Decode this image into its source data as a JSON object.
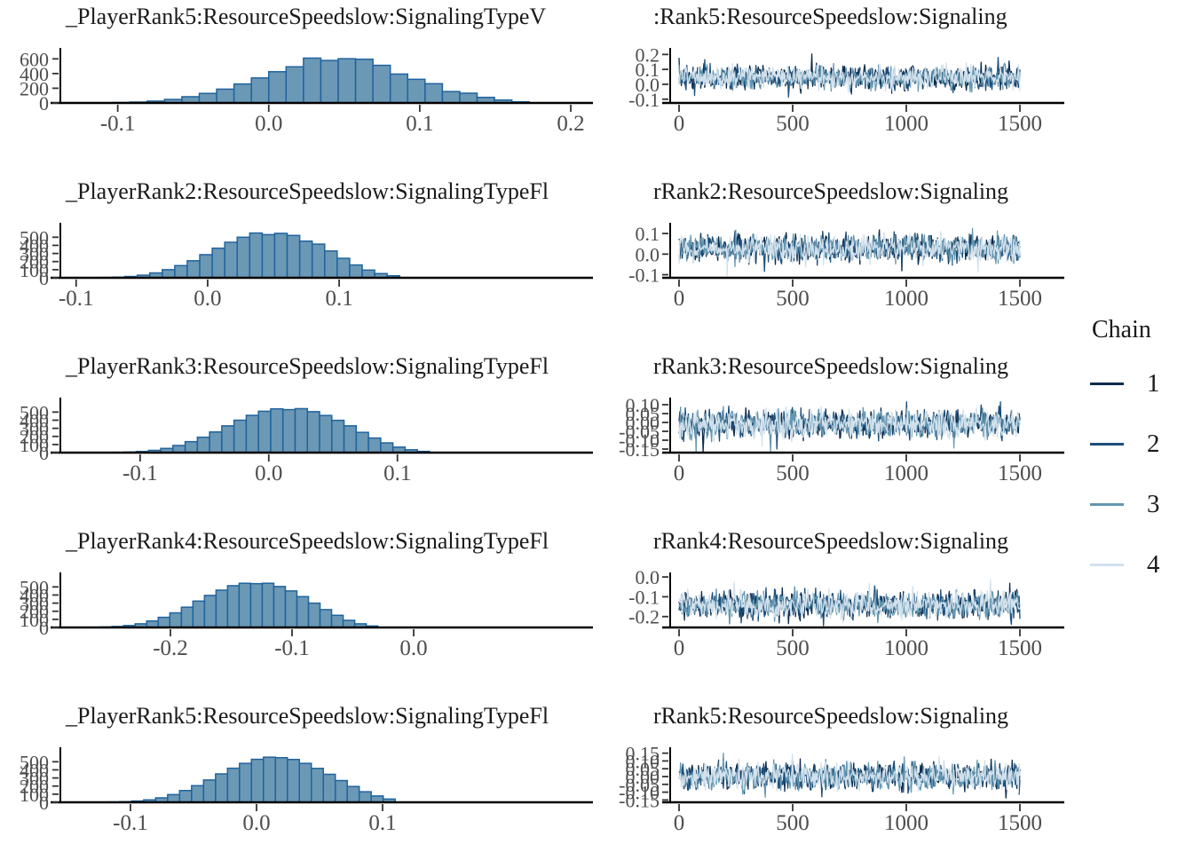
{
  "figure": {
    "background": "#ffffff"
  },
  "styles": {
    "bar_fill": "#6b98b5",
    "bar_stroke": "#1f639e",
    "axis_color": "#000000",
    "tick_color": "#333333",
    "tick_label_color": "#4d4d4d",
    "title_color": "#1a1a1a"
  },
  "legend": {
    "title": "Chain",
    "position": "right",
    "items": [
      {
        "label": "1",
        "color": "#0c2b4d"
      },
      {
        "label": "2",
        "color": "#1d4e79"
      },
      {
        "label": "3",
        "color": "#6497b1"
      },
      {
        "label": "4",
        "color": "#d2e1ec"
      }
    ]
  },
  "chart_data": [
    {
      "histogram": {
        "type": "bar",
        "title": "_PlayerRank5:ResourceSpeedslow:SignalingTypeV",
        "xlim": [
          -0.138,
          0.2147
        ],
        "ylim": [
          0,
          640
        ],
        "x_ticks": [
          -0.1,
          0.0,
          0.1,
          0.2
        ],
        "x_tick_labels": [
          "-0.1",
          "0.0",
          "0.1",
          "0.2"
        ],
        "y_ticks": [
          600,
          400,
          200,
          0
        ],
        "y_tick_labels": [
          "600",
          "400",
          "200",
          "0"
        ],
        "bin_start": -0.115,
        "bin_width": 0.0115,
        "counts": [
          3,
          6,
          12,
          25,
          48,
          85,
          130,
          188,
          258,
          340,
          425,
          492,
          610,
          578,
          602,
          595,
          512,
          393,
          322,
          262,
          155,
          133,
          76,
          40,
          15
        ]
      },
      "trace": {
        "type": "line",
        "title": ":Rank5:ResourceSpeedslow:Signaling",
        "xlim": [
          0,
          1500
        ],
        "ylim": [
          -0.125,
          0.22
        ],
        "x_ticks": [
          0,
          500,
          1000,
          1500
        ],
        "x_tick_labels": [
          "0",
          "500",
          "1000",
          "1500"
        ],
        "y_ticks": [
          0.2,
          0.1,
          0.0,
          -0.1
        ],
        "y_tick_labels": [
          "0.2",
          "0.1",
          "0.0",
          "-0.1"
        ],
        "n_iterations": 1500,
        "chains": 4,
        "mean": 0.045,
        "sd": 0.042
      }
    },
    {
      "histogram": {
        "type": "bar",
        "title": "_PlayerRank2:ResourceSpeedslow:SignalingTypeFl",
        "xlim": [
          -0.112,
          0.293
        ],
        "ylim": [
          0,
          580
        ],
        "x_ticks": [
          -0.1,
          0.0,
          0.1
        ],
        "x_tick_labels": [
          "-0.1",
          "0.0",
          "0.1"
        ],
        "y_ticks": [
          500,
          400,
          300,
          200,
          100,
          0
        ],
        "y_tick_labels": [
          "500",
          "400",
          "300",
          "200",
          "100",
          "0"
        ],
        "bin_start": -0.082,
        "bin_width": 0.0095,
        "counts": [
          4,
          8,
          16,
          32,
          60,
          100,
          150,
          210,
          285,
          365,
          438,
          500,
          552,
          532,
          548,
          522,
          452,
          415,
          330,
          240,
          158,
          95,
          52,
          25
        ]
      },
      "trace": {
        "type": "line",
        "title": "rRank2:ResourceSpeedslow:Signaling",
        "xlim": [
          0,
          1500
        ],
        "ylim": [
          -0.115,
          0.135
        ],
        "x_ticks": [
          0,
          500,
          1000,
          1500
        ],
        "x_tick_labels": [
          "0",
          "500",
          "1000",
          "1500"
        ],
        "y_ticks": [
          0.1,
          0.0,
          -0.1
        ],
        "y_tick_labels": [
          "0.1",
          "0.0",
          "-0.1"
        ],
        "n_iterations": 1500,
        "chains": 4,
        "mean": 0.028,
        "sd": 0.036
      }
    },
    {
      "histogram": {
        "type": "bar",
        "title": "_PlayerRank3:ResourceSpeedslow:SignalingTypeFl",
        "xlim": [
          -0.162,
          0.252
        ],
        "ylim": [
          0,
          580
        ],
        "x_ticks": [
          -0.1,
          0.0,
          0.1
        ],
        "x_tick_labels": [
          "-0.1",
          "0.0",
          "0.1"
        ],
        "y_ticks": [
          500,
          400,
          300,
          200,
          100,
          0
        ],
        "y_tick_labels": [
          "500",
          "400",
          "300",
          "200",
          "100",
          "0"
        ],
        "bin_start": -0.122,
        "bin_width": 0.0095,
        "counts": [
          3,
          7,
          14,
          28,
          52,
          88,
          135,
          190,
          255,
          330,
          400,
          460,
          510,
          540,
          530,
          542,
          505,
          458,
          398,
          330,
          250,
          180,
          120,
          68,
          35,
          15
        ]
      },
      "trace": {
        "type": "line",
        "title": "rRank3:ResourceSpeedslow:Signaling",
        "xlim": [
          0,
          1500
        ],
        "ylim": [
          -0.17,
          0.12
        ],
        "x_ticks": [
          0,
          500,
          1000,
          1500
        ],
        "x_tick_labels": [
          "0",
          "500",
          "1000",
          "1500"
        ],
        "y_ticks": [
          0.1,
          0.05,
          0.0,
          -0.05,
          -0.1,
          -0.15
        ],
        "y_tick_labels": [
          "0.10",
          "0.05",
          "0.00",
          "-0.05",
          "-0.10",
          "-0.15"
        ],
        "n_iterations": 1500,
        "chains": 4,
        "mean": -0.01,
        "sd": 0.042
      }
    },
    {
      "histogram": {
        "type": "bar",
        "title": "_PlayerRank4:ResourceSpeedslow:SignalingTypeFl",
        "xlim": [
          -0.2905,
          0.1474
        ],
        "ylim": [
          0,
          580
        ],
        "x_ticks": [
          -0.2,
          -0.1,
          0.0
        ],
        "x_tick_labels": [
          "-0.2",
          "-0.1",
          "0.0"
        ],
        "y_ticks": [
          500,
          400,
          300,
          200,
          100,
          0
        ],
        "y_tick_labels": [
          "500",
          "400",
          "300",
          "200",
          "100",
          "0"
        ],
        "bin_start": -0.267,
        "bin_width": 0.0095,
        "counts": [
          3,
          6,
          12,
          24,
          45,
          80,
          125,
          180,
          250,
          325,
          395,
          460,
          515,
          545,
          540,
          545,
          505,
          450,
          380,
          300,
          220,
          150,
          88,
          45,
          18
        ]
      },
      "trace": {
        "type": "line",
        "title": "rRank4:ResourceSpeedslow:Signaling",
        "xlim": [
          0,
          1500
        ],
        "ylim": [
          -0.255,
          0.005
        ],
        "x_ticks": [
          0,
          500,
          1000,
          1500
        ],
        "x_tick_labels": [
          "0",
          "500",
          "1000",
          "1500"
        ],
        "y_ticks": [
          0.0,
          -0.1,
          -0.2
        ],
        "y_tick_labels": [
          "0.0",
          "-0.1",
          "-0.2"
        ],
        "n_iterations": 1500,
        "chains": 4,
        "mean": -0.14,
        "sd": 0.036
      }
    },
    {
      "histogram": {
        "type": "bar",
        "title": "_PlayerRank5:ResourceSpeedslow:SignalingTypeFl",
        "xlim": [
          -0.1556,
          0.2669
        ],
        "ylim": [
          0,
          580
        ],
        "x_ticks": [
          -0.1,
          0.0,
          0.1
        ],
        "x_tick_labels": [
          "-0.1",
          "0.0",
          "0.1"
        ],
        "y_ticks": [
          500,
          400,
          300,
          200,
          100,
          0
        ],
        "y_tick_labels": [
          "500",
          "400",
          "300",
          "200",
          "100",
          "0"
        ],
        "bin_start": -0.118,
        "bin_width": 0.0095,
        "counts": [
          4,
          8,
          16,
          30,
          55,
          95,
          145,
          205,
          275,
          350,
          420,
          480,
          530,
          556,
          550,
          528,
          480,
          418,
          345,
          268,
          195,
          130,
          78,
          40
        ]
      },
      "trace": {
        "type": "line",
        "title": "rRank5:ResourceSpeedslow:Signaling",
        "xlim": [
          0,
          1500
        ],
        "ylim": [
          -0.165,
          0.165
        ],
        "x_ticks": [
          0,
          500,
          1000,
          1500
        ],
        "x_tick_labels": [
          "0",
          "500",
          "1000",
          "1500"
        ],
        "y_ticks": [
          0.15,
          0.1,
          0.05,
          0.0,
          -0.05,
          -0.1,
          -0.15
        ],
        "y_tick_labels": [
          "0.15",
          "0.10",
          "0.05",
          "0.00",
          "-0.05",
          "-0.10",
          "-0.15"
        ],
        "n_iterations": 1500,
        "chains": 4,
        "mean": 0.0,
        "sd": 0.046
      }
    }
  ]
}
